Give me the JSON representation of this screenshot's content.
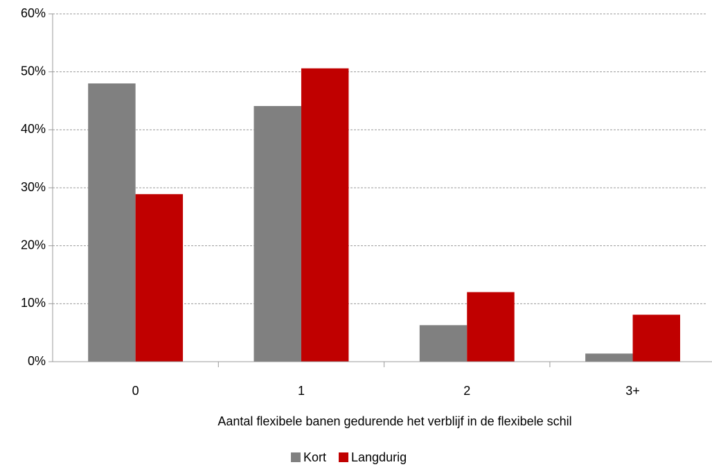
{
  "chart_data": {
    "type": "bar",
    "x_label": "Aantal flexibele banen gedurende het verblijf in de flexibele schil",
    "categories": [
      "0",
      "1",
      "2",
      "3+"
    ],
    "series": [
      {
        "name": "Kort",
        "color": "#808080",
        "values": [
          48,
          44.1,
          6.3,
          1.4
        ]
      },
      {
        "name": "Langdurig",
        "color": "#c00000",
        "values": [
          28.9,
          50.6,
          12,
          8.1
        ]
      }
    ],
    "ylim": [
      0,
      60
    ],
    "yticks": [
      {
        "value": 0,
        "label": "0%"
      },
      {
        "value": 10,
        "label": "10%"
      },
      {
        "value": 20,
        "label": "20%"
      },
      {
        "value": 30,
        "label": "30%"
      },
      {
        "value": 40,
        "label": "40%"
      },
      {
        "value": 50,
        "label": "50%"
      },
      {
        "value": 60,
        "label": "60%"
      }
    ],
    "grid": true,
    "legend": "bottom"
  }
}
